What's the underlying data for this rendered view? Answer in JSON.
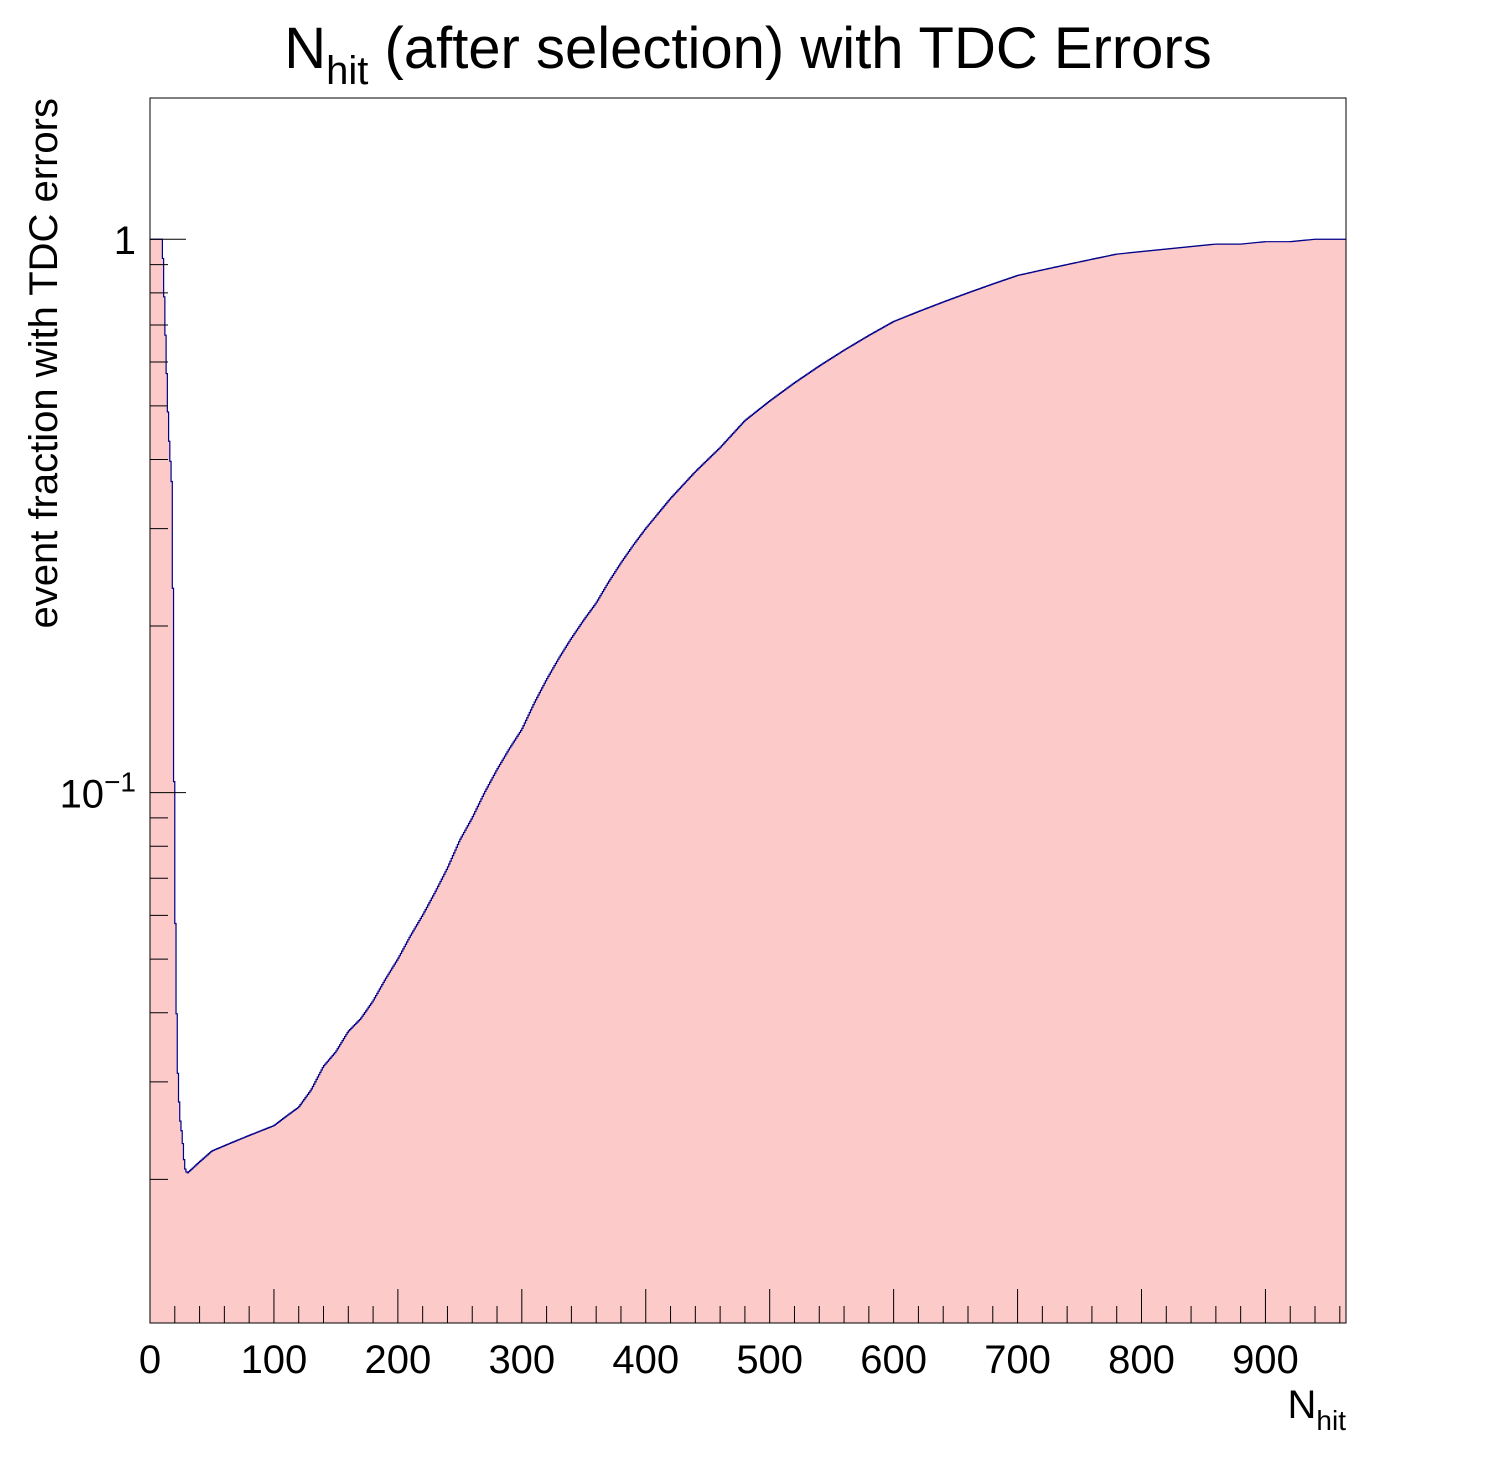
{
  "chart_data": {
    "type": "bar",
    "style": "histogram",
    "title": {
      "main": "N",
      "sub": "hit",
      "rest": " (after selection) with TDC Errors"
    },
    "xlabel": {
      "main": "N",
      "sub": "hit"
    },
    "ylabel": "event fraction with TDC errors",
    "y_scale": "log",
    "xlim": [
      0,
      965
    ],
    "ylim": [
      0.011,
      1.8
    ],
    "x_ticks": [
      0,
      100,
      200,
      300,
      400,
      500,
      600,
      700,
      800,
      900
    ],
    "x_tick_labels": [
      "0",
      "100",
      "200",
      "300",
      "400",
      "500",
      "600",
      "700",
      "800",
      "900"
    ],
    "y_ticks": [
      0.1,
      1
    ],
    "y_tick_labels": [
      {
        "base": "10",
        "exp": "−1"
      },
      {
        "base": "1",
        "exp": ""
      }
    ],
    "series": [
      {
        "fill_color": "#fdcaca",
        "line_color": "#00008b",
        "x": [
          0,
          5,
          10,
          15,
          18,
          20,
          22,
          24,
          26,
          28,
          30,
          35,
          40,
          50,
          60,
          70,
          80,
          90,
          100,
          110,
          120,
          130,
          140,
          150,
          160,
          170,
          180,
          190,
          200,
          210,
          220,
          230,
          240,
          250,
          260,
          270,
          280,
          290,
          300,
          310,
          320,
          330,
          340,
          350,
          360,
          370,
          380,
          390,
          400,
          420,
          440,
          460,
          480,
          500,
          520,
          540,
          560,
          580,
          600,
          620,
          640,
          660,
          680,
          700,
          720,
          740,
          760,
          780,
          800,
          820,
          840,
          860,
          880,
          900,
          920,
          940,
          950,
          955,
          960,
          965
        ],
        "values": [
          1.0,
          1.0,
          1.0,
          0.45,
          0.35,
          0.07,
          0.033,
          0.026,
          0.024,
          0.021,
          0.0205,
          0.021,
          0.0215,
          0.0225,
          0.023,
          0.0235,
          0.024,
          0.0245,
          0.025,
          0.026,
          0.027,
          0.029,
          0.032,
          0.034,
          0.037,
          0.039,
          0.042,
          0.046,
          0.05,
          0.055,
          0.06,
          0.066,
          0.073,
          0.082,
          0.09,
          0.1,
          0.11,
          0.12,
          0.13,
          0.145,
          0.16,
          0.175,
          0.19,
          0.205,
          0.22,
          0.24,
          0.26,
          0.28,
          0.3,
          0.34,
          0.38,
          0.42,
          0.47,
          0.51,
          0.55,
          0.59,
          0.63,
          0.67,
          0.71,
          0.74,
          0.77,
          0.8,
          0.83,
          0.86,
          0.88,
          0.9,
          0.92,
          0.94,
          0.95,
          0.96,
          0.97,
          0.98,
          0.98,
          0.99,
          0.99,
          1.0,
          1.0,
          1.0,
          1.0,
          1.0
        ]
      }
    ]
  }
}
